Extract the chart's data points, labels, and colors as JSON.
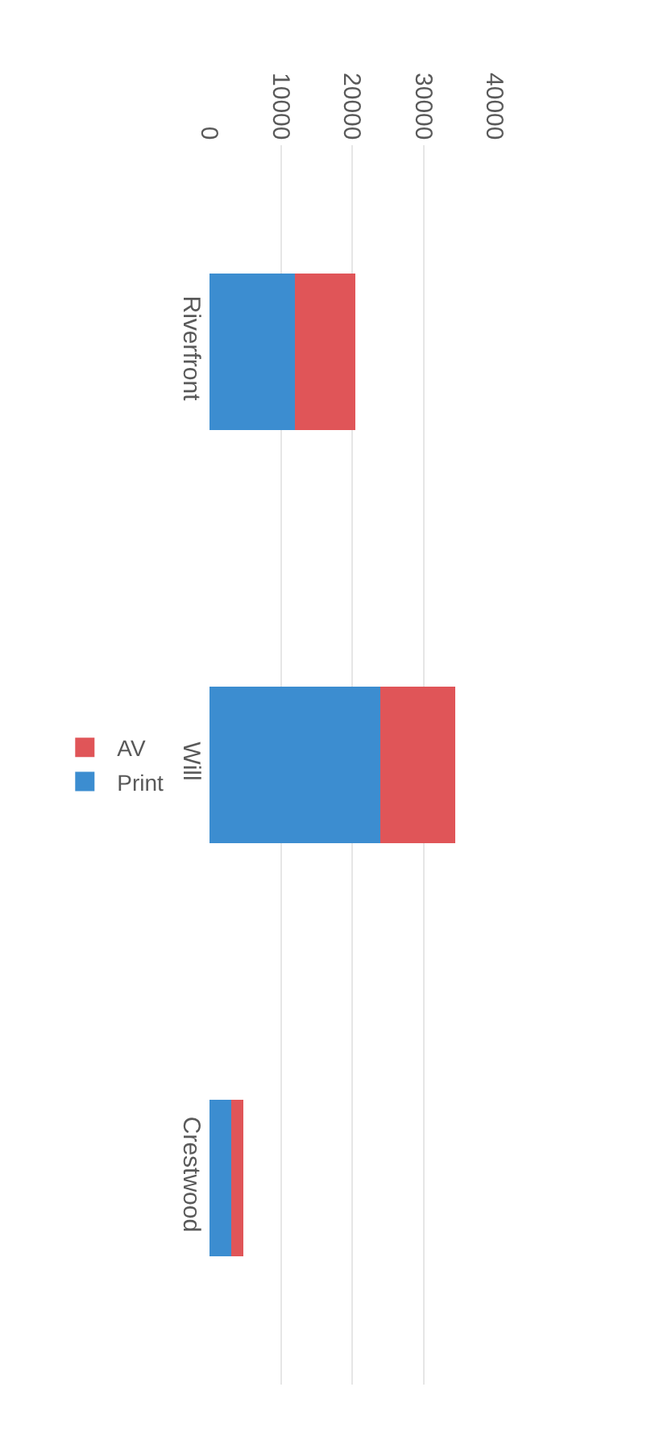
{
  "chart_data": {
    "type": "bar",
    "orientation": "horizontal",
    "stacked": true,
    "categories": [
      "Riverfront",
      "Will",
      "Crestwood"
    ],
    "series": [
      {
        "name": "Print",
        "color": "#3c8dd0",
        "values": [
          12000,
          24000,
          3100
        ]
      },
      {
        "name": "AV",
        "color": "#e05558",
        "values": [
          8500,
          10500,
          1600
        ]
      }
    ],
    "xlim": [
      0,
      40000
    ],
    "xticks": [
      0,
      10000,
      20000,
      30000,
      40000
    ],
    "grid": "x",
    "legend": "left"
  }
}
